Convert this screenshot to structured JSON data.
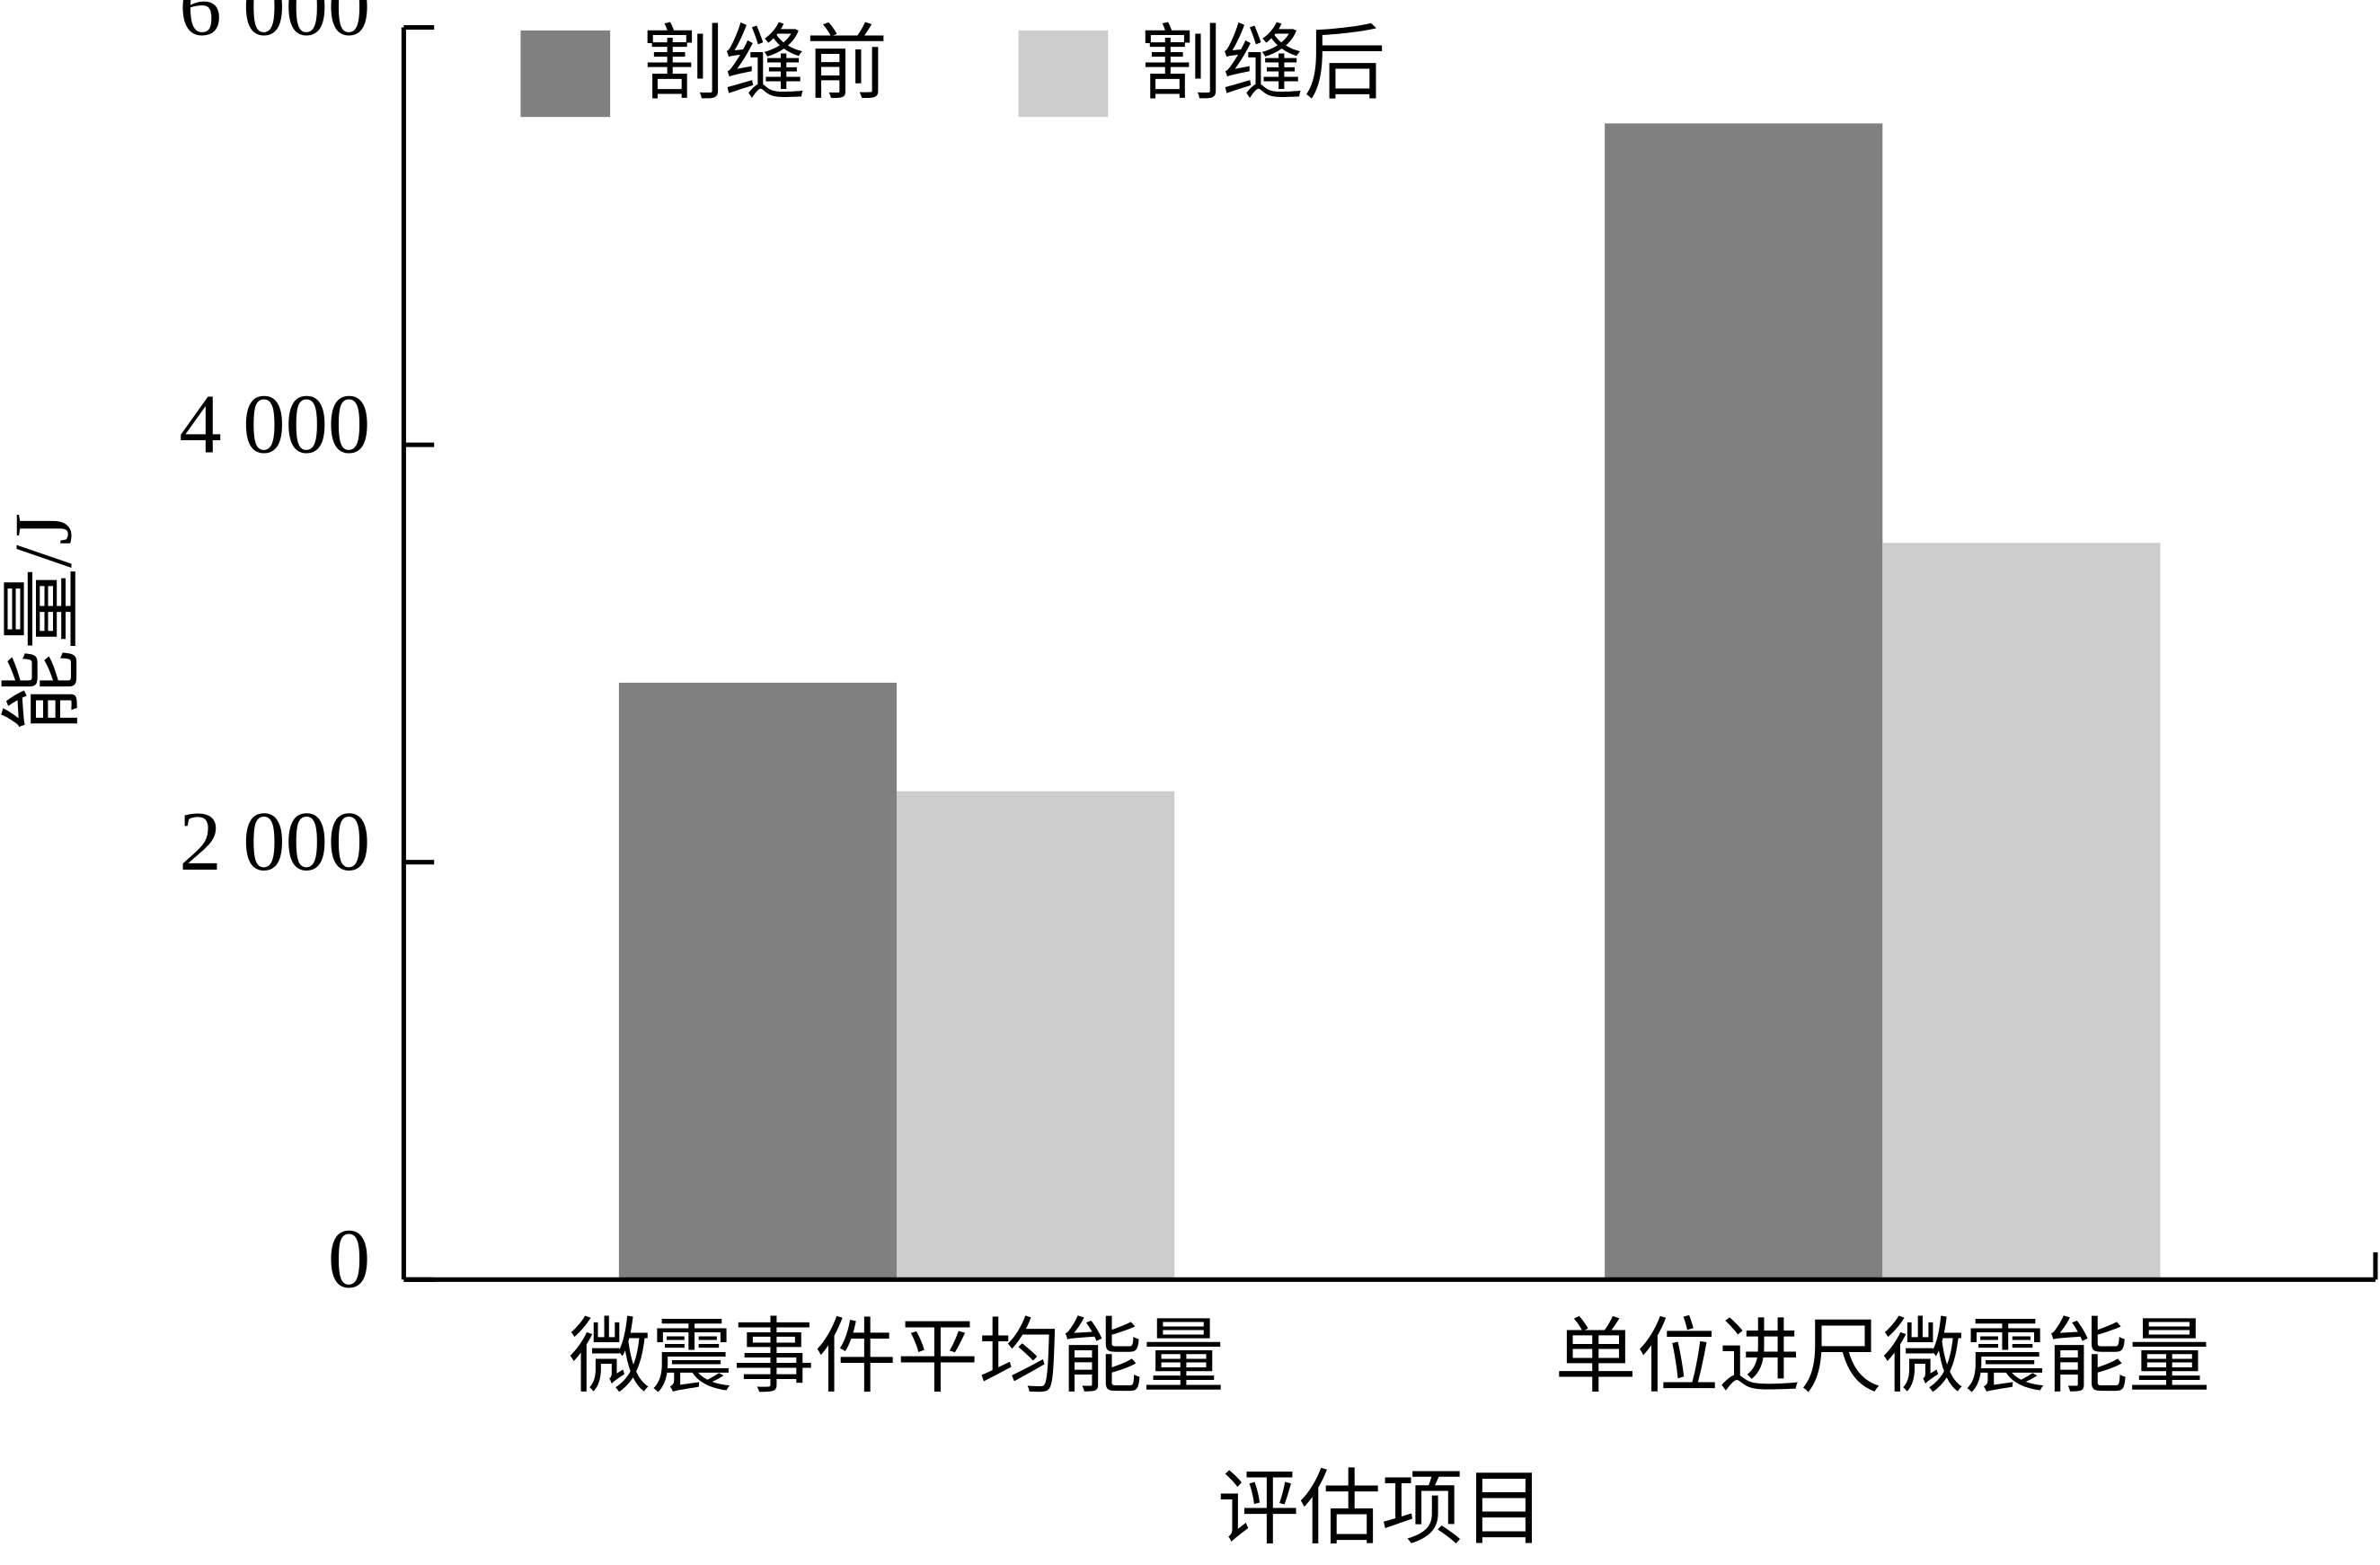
{
  "chart_data": {
    "type": "bar",
    "x_label": "评估项目",
    "y_label": "能量/J",
    "categories": [
      "微震事件平均能量",
      "单位进尺微震能量"
    ],
    "series": [
      {
        "name": "割缝前",
        "color": "#808080",
        "values": [
          2860,
          5540
        ]
      },
      {
        "name": "割缝后",
        "color": "#cccccc",
        "values": [
          2340,
          3530
        ]
      }
    ],
    "ylim": [
      0,
      6000
    ],
    "yticks": [
      0,
      {
        "value": 2000,
        "label": "2 000"
      },
      {
        "value": 4000,
        "label": "4 000"
      },
      {
        "value": 6000,
        "label": "6 000"
      }
    ],
    "grid": false,
    "legend": "top-left"
  }
}
